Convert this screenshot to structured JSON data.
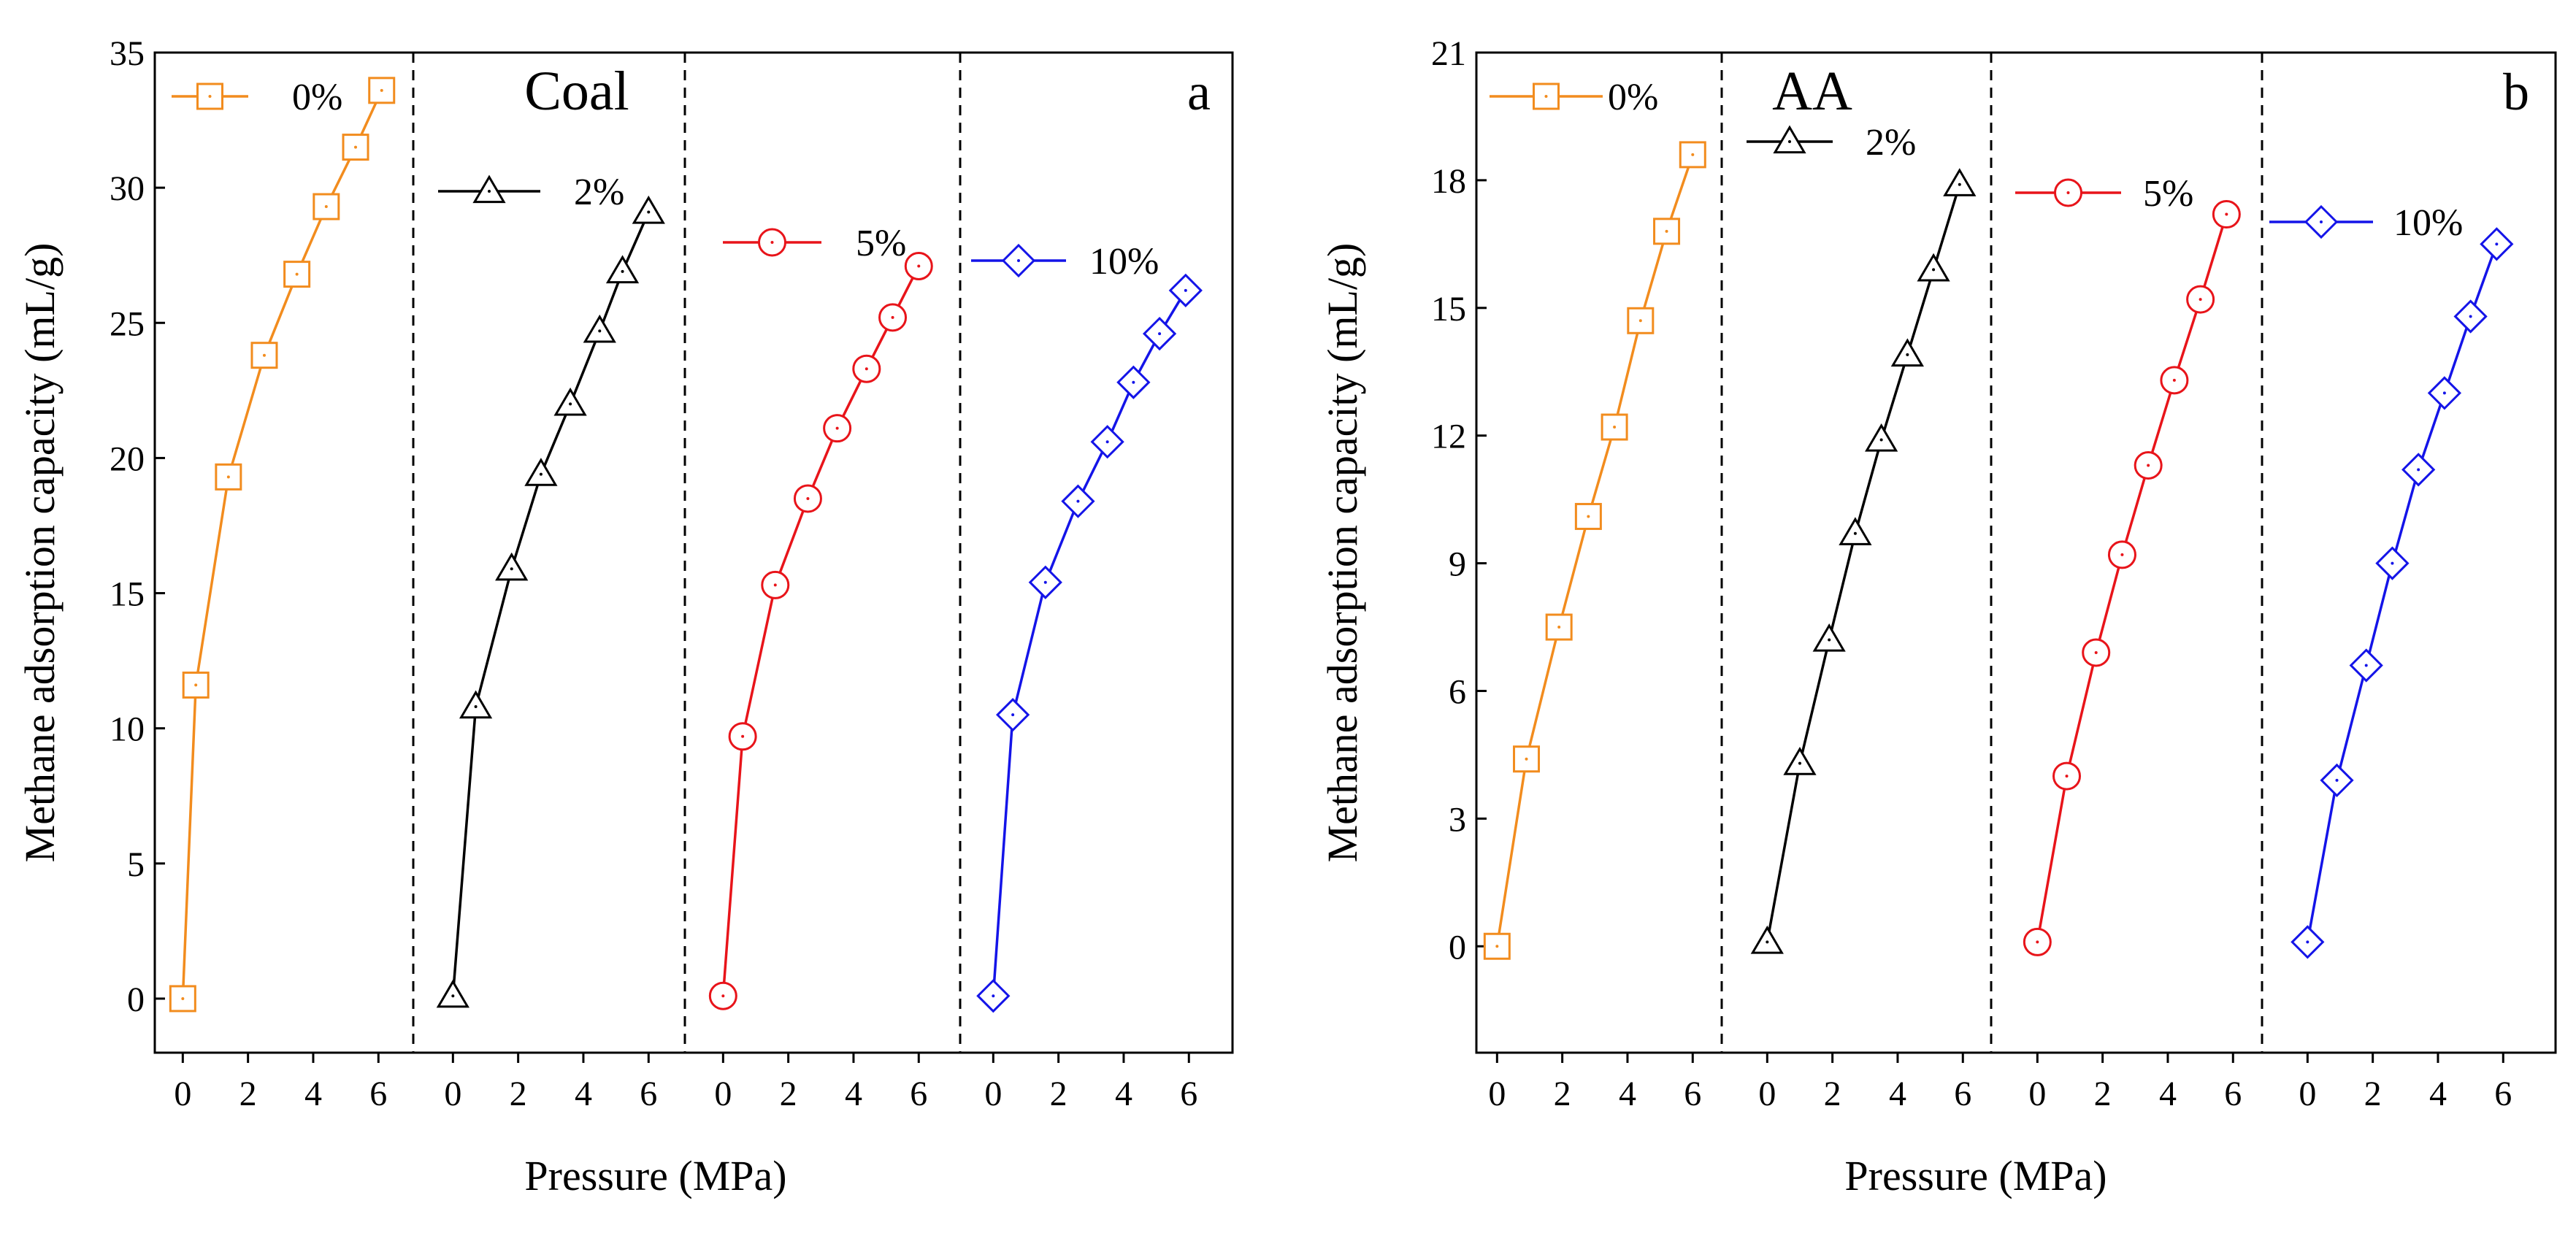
{
  "chart_data": [
    {
      "type": "line",
      "panel_label": "a",
      "panel_title": "Coal",
      "xlabel": "Pressure (MPa)",
      "ylabel": "Methane adsorption capacity (mL/g)",
      "xlim": [
        -0.5,
        6.8
      ],
      "ylim": [
        -2,
        35
      ],
      "x_ticks": [
        "0",
        "2",
        "4",
        "6"
      ],
      "y_ticks": [
        "0",
        "5",
        "10",
        "15",
        "20",
        "25",
        "30",
        "35"
      ],
      "y_tick_values": [
        0,
        5,
        10,
        15,
        20,
        25,
        30,
        35
      ],
      "grid": false,
      "layout": "four side-by-side sub-panels separated by dashed lines, each with its own 0-6 MPa pressure axis",
      "series": [
        {
          "name": "0%",
          "color": "#F28C1E",
          "marker": "square",
          "points": [
            {
              "x": 0.0,
              "y": 0.0
            },
            {
              "x": 0.4,
              "y": 11.6
            },
            {
              "x": 1.4,
              "y": 19.3
            },
            {
              "x": 2.5,
              "y": 23.8
            },
            {
              "x": 3.5,
              "y": 26.8
            },
            {
              "x": 4.4,
              "y": 29.3
            },
            {
              "x": 5.3,
              "y": 31.5
            },
            {
              "x": 6.1,
              "y": 33.6
            }
          ]
        },
        {
          "name": "2%",
          "color": "#000000",
          "marker": "triangle",
          "points": [
            {
              "x": 0.0,
              "y": 0.1
            },
            {
              "x": 0.7,
              "y": 10.8
            },
            {
              "x": 1.8,
              "y": 15.9
            },
            {
              "x": 2.7,
              "y": 19.4
            },
            {
              "x": 3.6,
              "y": 22.0
            },
            {
              "x": 4.5,
              "y": 24.7
            },
            {
              "x": 5.2,
              "y": 26.9
            },
            {
              "x": 6.0,
              "y": 29.1
            }
          ]
        },
        {
          "name": "5%",
          "color": "#E8141A",
          "marker": "circle",
          "points": [
            {
              "x": 0.0,
              "y": 0.1
            },
            {
              "x": 0.6,
              "y": 9.7
            },
            {
              "x": 1.6,
              "y": 15.3
            },
            {
              "x": 2.6,
              "y": 18.5
            },
            {
              "x": 3.5,
              "y": 21.1
            },
            {
              "x": 4.4,
              "y": 23.3
            },
            {
              "x": 5.2,
              "y": 25.2
            },
            {
              "x": 6.0,
              "y": 27.1
            }
          ]
        },
        {
          "name": "10%",
          "color": "#1414E8",
          "marker": "diamond",
          "points": [
            {
              "x": 0.0,
              "y": 0.1
            },
            {
              "x": 0.6,
              "y": 10.5
            },
            {
              "x": 1.6,
              "y": 15.4
            },
            {
              "x": 2.6,
              "y": 18.4
            },
            {
              "x": 3.5,
              "y": 20.6
            },
            {
              "x": 4.3,
              "y": 22.8
            },
            {
              "x": 5.1,
              "y": 24.6
            },
            {
              "x": 5.9,
              "y": 26.2
            }
          ]
        }
      ]
    },
    {
      "type": "line",
      "panel_label": "b",
      "panel_title": "AA",
      "xlabel": "Pressure (MPa)",
      "ylabel": "Methane adsorption capacity (mL/g)",
      "xlim": [
        -0.5,
        6.8
      ],
      "ylim": [
        -2.5,
        21
      ],
      "x_ticks": [
        "0",
        "2",
        "4",
        "6"
      ],
      "y_ticks": [
        "0",
        "3",
        "6",
        "9",
        "12",
        "15",
        "18",
        "21"
      ],
      "y_tick_values": [
        0,
        3,
        6,
        9,
        12,
        15,
        18,
        21
      ],
      "grid": false,
      "layout": "four side-by-side sub-panels separated by dashed lines, each with its own 0-6 MPa pressure axis",
      "series": [
        {
          "name": "0%",
          "color": "#F28C1E",
          "marker": "square",
          "points": [
            {
              "x": 0.0,
              "y": 0.0
            },
            {
              "x": 0.9,
              "y": 4.4
            },
            {
              "x": 1.9,
              "y": 7.5
            },
            {
              "x": 2.8,
              "y": 10.1
            },
            {
              "x": 3.6,
              "y": 12.2
            },
            {
              "x": 4.4,
              "y": 14.7
            },
            {
              "x": 5.2,
              "y": 16.8
            },
            {
              "x": 6.0,
              "y": 18.6
            }
          ]
        },
        {
          "name": "2%",
          "color": "#000000",
          "marker": "triangle",
          "points": [
            {
              "x": 0.0,
              "y": 0.1
            },
            {
              "x": 1.0,
              "y": 4.3
            },
            {
              "x": 1.9,
              "y": 7.2
            },
            {
              "x": 2.7,
              "y": 9.7
            },
            {
              "x": 3.5,
              "y": 11.9
            },
            {
              "x": 4.3,
              "y": 13.9
            },
            {
              "x": 5.1,
              "y": 15.9
            },
            {
              "x": 5.9,
              "y": 17.9
            }
          ]
        },
        {
          "name": "5%",
          "color": "#E8141A",
          "marker": "circle",
          "points": [
            {
              "x": 0.0,
              "y": 0.1
            },
            {
              "x": 0.9,
              "y": 4.0
            },
            {
              "x": 1.8,
              "y": 6.9
            },
            {
              "x": 2.6,
              "y": 9.2
            },
            {
              "x": 3.4,
              "y": 11.3
            },
            {
              "x": 4.2,
              "y": 13.3
            },
            {
              "x": 5.0,
              "y": 15.2
            },
            {
              "x": 5.8,
              "y": 17.2
            }
          ]
        },
        {
          "name": "10%",
          "color": "#1414E8",
          "marker": "diamond",
          "points": [
            {
              "x": 0.0,
              "y": 0.1
            },
            {
              "x": 0.9,
              "y": 3.9
            },
            {
              "x": 1.8,
              "y": 6.6
            },
            {
              "x": 2.6,
              "y": 9.0
            },
            {
              "x": 3.4,
              "y": 11.2
            },
            {
              "x": 4.2,
              "y": 13.0
            },
            {
              "x": 5.0,
              "y": 14.8
            },
            {
              "x": 5.8,
              "y": 16.5
            }
          ]
        }
      ]
    }
  ]
}
